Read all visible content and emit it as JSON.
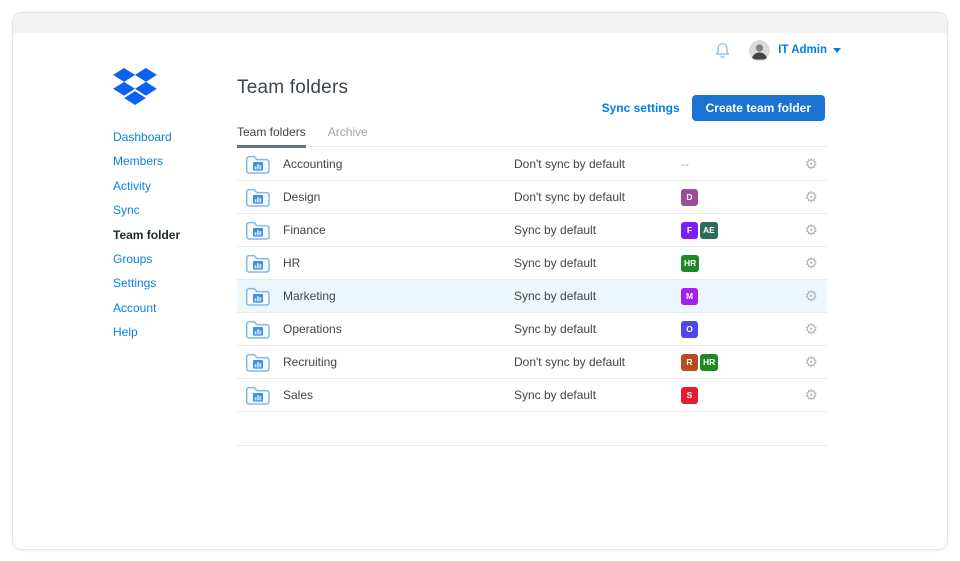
{
  "colors": {
    "accent_blue": "#007ee5",
    "button_blue": "#1a73d2",
    "logo_blue": "#0061fe",
    "row_highlight": "#eef6fd",
    "text_dark": "#3d464d",
    "text_gray": "#9aa5ad",
    "gear_gray": "#b3b9bf"
  },
  "header": {
    "user_name": "IT Admin",
    "bell_icon": "notifications-bell",
    "avatar": "user-photo"
  },
  "sidebar": {
    "items": [
      {
        "label": "Dashboard",
        "active": false
      },
      {
        "label": "Members",
        "active": false
      },
      {
        "label": "Activity",
        "active": false
      },
      {
        "label": "Sync",
        "active": false
      },
      {
        "label": "Team folder",
        "active": true
      },
      {
        "label": "Groups",
        "active": false
      },
      {
        "label": "Settings",
        "active": false
      },
      {
        "label": "Account",
        "active": false
      },
      {
        "label": "Help",
        "active": false
      }
    ]
  },
  "main": {
    "title": "Team folders",
    "actions": {
      "sync_settings": "Sync settings",
      "create_button": "Create team folder"
    },
    "tabs": [
      {
        "label": "Team folders",
        "active": true
      },
      {
        "label": "Archive",
        "active": false
      }
    ],
    "table": {
      "empty_placeholder": "--",
      "rows": [
        {
          "name": "Accounting",
          "sync": "Don't sync by default",
          "groups": [],
          "highlighted": false
        },
        {
          "name": "Design",
          "sync": "Don't sync by default",
          "groups": [
            {
              "label": "D",
              "color": "#9b4d96"
            }
          ],
          "highlighted": false
        },
        {
          "name": "Finance",
          "sync": "Sync by default",
          "groups": [
            {
              "label": "F",
              "color": "#7b1ff2"
            },
            {
              "label": "AE",
              "color": "#2e6b5c"
            }
          ],
          "highlighted": false
        },
        {
          "name": "HR",
          "sync": "Sync by default",
          "groups": [
            {
              "label": "HR",
              "color": "#1e8a24"
            }
          ],
          "highlighted": false
        },
        {
          "name": "Marketing",
          "sync": "Sync by default",
          "groups": [
            {
              "label": "M",
              "color": "#a31ff0"
            }
          ],
          "highlighted": true
        },
        {
          "name": "Operations",
          "sync": "Sync by default",
          "groups": [
            {
              "label": "O",
              "color": "#4d49e8"
            }
          ],
          "highlighted": false
        },
        {
          "name": "Recruiting",
          "sync": "Don't sync by default",
          "groups": [
            {
              "label": "R",
              "color": "#b54d1f"
            },
            {
              "label": "HR",
              "color": "#1e8a24"
            }
          ],
          "highlighted": false
        },
        {
          "name": "Sales",
          "sync": "Sync by default",
          "groups": [
            {
              "label": "S",
              "color": "#e51c30"
            }
          ],
          "highlighted": false
        }
      ]
    }
  },
  "icons": {
    "gear_glyph": "⚙"
  }
}
